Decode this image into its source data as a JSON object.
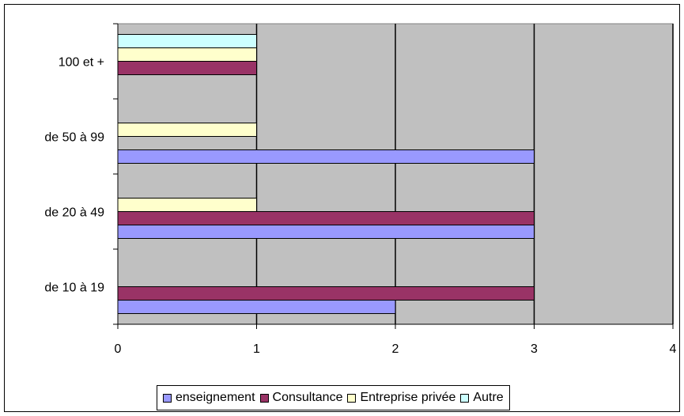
{
  "chart_data": {
    "type": "bar",
    "orientation": "horizontal",
    "categories": [
      "de 10 à 19",
      "de 20 à 49",
      "de 50 à 99",
      "100 et +"
    ],
    "series": [
      {
        "name": "enseignement",
        "color": "#9999FF",
        "values": [
          2,
          3,
          3,
          0
        ]
      },
      {
        "name": "Consultance",
        "color": "#993366",
        "values": [
          3,
          3,
          0,
          1
        ]
      },
      {
        "name": "Entreprise privée",
        "color": "#FFFFCC",
        "values": [
          0,
          1,
          1,
          1
        ]
      },
      {
        "name": "Autre",
        "color": "#CCFFFF",
        "values": [
          0,
          0,
          0,
          1
        ]
      }
    ],
    "xlim": [
      0,
      4
    ],
    "xticks": [
      "0",
      "1",
      "2",
      "3",
      "4"
    ],
    "plot_background": "#C0C0C0",
    "grid": "vertical",
    "legend_position": "bottom"
  }
}
